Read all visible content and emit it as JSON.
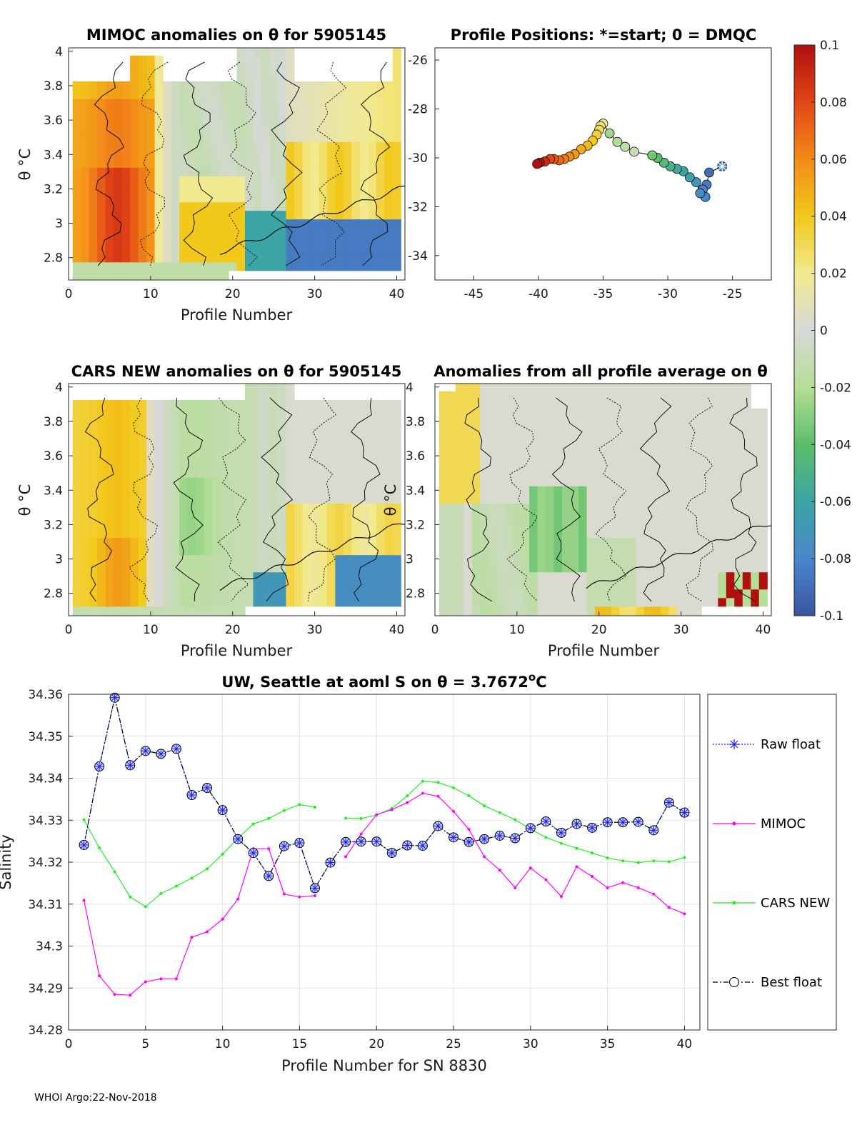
{
  "footer": "WHOI Argo:22-Nov-2018",
  "colorbar": {
    "min": -0.1,
    "max": 0.1,
    "tick_values": [
      0.1,
      0.08,
      0.06,
      0.04,
      0.02,
      0,
      -0.02,
      -0.04,
      -0.06,
      -0.08,
      -0.1
    ],
    "tick_labels": [
      "0.1",
      "0.08",
      "0.06",
      "0.04",
      "0.02",
      "0",
      "-0.02",
      "-0.04",
      "-0.06",
      "-0.08",
      "-0.1"
    ],
    "colors": [
      "#3a55a0",
      "#4a86cc",
      "#3aa5a4",
      "#5cbe6a",
      "#b5de96",
      "#d8d8d8",
      "#f2ea90",
      "#f2c81a",
      "#f38a18",
      "#e24516",
      "#b01010"
    ]
  },
  "chart_data": [
    {
      "id": "mimoc-anomalies",
      "type": "heatmap",
      "title": "MIMOC anomalies on θ  for 5905145",
      "xlabel": "Profile Number",
      "ylabel": "θ °C",
      "xlim": [
        0,
        41
      ],
      "ylim": [
        2.67,
        4.02
      ],
      "x_ticks": [
        0,
        10,
        20,
        30,
        40
      ],
      "y_ticks": [
        2.8,
        3,
        3.2,
        3.4,
        3.6,
        3.8,
        4
      ],
      "y_tick_labels": [
        "2.8",
        "3",
        "3.2",
        "3.4",
        "3.6",
        "3.8",
        "4"
      ]
    },
    {
      "id": "profile-positions",
      "type": "scatter",
      "title": "Profile Positions: *=start; 0 = DMQC",
      "xlim": [
        -48,
        -22
      ],
      "ylim": [
        -35,
        -25.5
      ],
      "x_ticks": [
        -45,
        -40,
        -35,
        -30,
        -25
      ],
      "y_ticks": [
        -26,
        -28,
        -30,
        -32,
        -34
      ],
      "points": [
        {
          "lon": -25.8,
          "lat": -30.35,
          "v": -0.08,
          "start": true
        },
        {
          "lon": -26.8,
          "lat": -30.6,
          "v": -0.09
        },
        {
          "lon": -27.0,
          "lat": -31.1,
          "v": -0.085
        },
        {
          "lon": -27.3,
          "lat": -31.3,
          "v": -0.08
        },
        {
          "lon": -27.1,
          "lat": -31.6,
          "v": -0.08
        },
        {
          "lon": -27.5,
          "lat": -31.45,
          "v": -0.075
        },
        {
          "lon": -27.8,
          "lat": -31.0,
          "v": -0.07
        },
        {
          "lon": -28.3,
          "lat": -30.8,
          "v": -0.065
        },
        {
          "lon": -28.8,
          "lat": -30.55,
          "v": -0.06
        },
        {
          "lon": -29.3,
          "lat": -30.45,
          "v": -0.055
        },
        {
          "lon": -29.8,
          "lat": -30.35,
          "v": -0.05
        },
        {
          "lon": -30.3,
          "lat": -30.2,
          "v": -0.045
        },
        {
          "lon": -30.8,
          "lat": -30.0,
          "v": -0.04
        },
        {
          "lon": -31.2,
          "lat": -29.9,
          "v": -0.035
        },
        {
          "lon": -32.6,
          "lat": -29.75,
          "v": -0.01
        },
        {
          "lon": -33.3,
          "lat": -29.55,
          "v": -0.015
        },
        {
          "lon": -33.9,
          "lat": -29.35,
          "v": -0.02
        },
        {
          "lon": -34.5,
          "lat": -29.0,
          "v": -0.025
        },
        {
          "lon": -35.0,
          "lat": -28.6,
          "v": 0.02
        },
        {
          "lon": -35.2,
          "lat": -28.7,
          "v": 0.025
        },
        {
          "lon": -35.3,
          "lat": -28.85,
          "v": 0.03
        },
        {
          "lon": -35.5,
          "lat": -29.05,
          "v": 0.035
        },
        {
          "lon": -35.8,
          "lat": -29.3,
          "v": 0.04
        },
        {
          "lon": -36.2,
          "lat": -29.5,
          "v": 0.045
        },
        {
          "lon": -36.7,
          "lat": -29.65,
          "v": 0.05
        },
        {
          "lon": -37.2,
          "lat": -29.85,
          "v": 0.055
        },
        {
          "lon": -37.6,
          "lat": -29.95,
          "v": 0.06
        },
        {
          "lon": -38.0,
          "lat": -30.05,
          "v": 0.065
        },
        {
          "lon": -38.4,
          "lat": -30.1,
          "v": 0.07
        },
        {
          "lon": -38.8,
          "lat": -30.05,
          "v": 0.075
        },
        {
          "lon": -39.1,
          "lat": -30.05,
          "v": 0.08
        },
        {
          "lon": -39.5,
          "lat": -30.15,
          "v": 0.09
        },
        {
          "lon": -39.9,
          "lat": -30.2,
          "v": 0.1
        },
        {
          "lon": -40.1,
          "lat": -30.25,
          "v": 0.1
        }
      ]
    },
    {
      "id": "cars-anomalies",
      "type": "heatmap",
      "title": "CARS NEW anomalies on θ for 5905145",
      "xlabel": "Profile Number",
      "ylabel": "θ °C",
      "xlim": [
        0,
        41
      ],
      "ylim": [
        2.67,
        4.02
      ],
      "x_ticks": [
        0,
        10,
        20,
        30,
        40
      ],
      "y_ticks": [
        2.8,
        3,
        3.2,
        3.4,
        3.6,
        3.8,
        4
      ],
      "y_tick_labels": [
        "2.8",
        "3",
        "3.2",
        "3.4",
        "3.6",
        "3.8",
        "4"
      ]
    },
    {
      "id": "profile-average-anomalies",
      "type": "heatmap",
      "title": "Anomalies from all profile average on θ",
      "xlabel": "Profile Number",
      "ylabel": "θ °C",
      "xlim": [
        0,
        41
      ],
      "ylim": [
        2.67,
        4.02
      ],
      "x_ticks": [
        0,
        10,
        20,
        30,
        40
      ],
      "y_ticks": [
        2.8,
        3,
        3.2,
        3.4,
        3.6,
        3.8,
        4
      ],
      "y_tick_labels": [
        "2.8",
        "3",
        "3.2",
        "3.4",
        "3.6",
        "3.8",
        "4"
      ]
    },
    {
      "id": "salinity-series",
      "type": "line",
      "title": "UW, Seattle at aoml S on θ = 3.7672°C",
      "title_parts": {
        "prefix": "UW, Seattle at aoml S on θ = 3.7672",
        "degree": "o",
        "unit": "C"
      },
      "xlabel": "Profile Number for SN 8830",
      "ylabel": "Salinity",
      "xlim": [
        0,
        41
      ],
      "ylim": [
        34.28,
        34.36
      ],
      "x_ticks": [
        0,
        5,
        10,
        15,
        20,
        25,
        30,
        35,
        40
      ],
      "y_ticks": [
        34.28,
        34.29,
        34.3,
        34.31,
        34.32,
        34.33,
        34.34,
        34.35,
        34.36
      ],
      "y_tick_labels": [
        "34.28",
        "34.29",
        "34.3",
        "34.31",
        "34.32",
        "34.33",
        "34.34",
        "34.35",
        "34.36"
      ],
      "x": [
        1,
        2,
        3,
        4,
        5,
        6,
        7,
        8,
        9,
        10,
        11,
        12,
        13,
        14,
        15,
        16,
        17,
        18,
        19,
        20,
        21,
        22,
        23,
        24,
        25,
        26,
        27,
        28,
        29,
        30,
        31,
        32,
        33,
        34,
        35,
        36,
        37,
        38,
        39,
        40
      ],
      "series": [
        {
          "name": "Raw float",
          "color": "#1a1aff",
          "values": [
            34.3241,
            34.3428,
            34.3592,
            34.3431,
            34.3465,
            34.3458,
            34.347,
            34.336,
            34.3377,
            34.3324,
            34.3255,
            34.3222,
            34.3167,
            34.3238,
            34.3246,
            34.3138,
            34.3199,
            34.3248,
            34.3249,
            34.3249,
            34.3222,
            34.324,
            34.3239,
            34.3286,
            34.3259,
            34.3248,
            34.3255,
            34.3263,
            34.3257,
            34.3281,
            34.3297,
            34.327,
            34.3291,
            34.3282,
            34.3295,
            34.3295,
            34.3296,
            34.3276,
            34.3342,
            34.3318
          ]
        },
        {
          "name": "MIMOC",
          "color": "#ff00ff",
          "values": [
            34.3109,
            34.2929,
            34.2885,
            34.2883,
            34.2915,
            34.2922,
            34.2922,
            34.3021,
            34.3034,
            34.3064,
            34.3112,
            34.3232,
            34.3232,
            34.3124,
            34.3117,
            34.312,
            null,
            34.3213,
            34.3267,
            34.3313,
            34.3325,
            34.3342,
            34.3364,
            34.3357,
            34.3321,
            34.3278,
            34.3213,
            34.3181,
            34.3139,
            34.3186,
            34.3158,
            34.3118,
            34.3189,
            34.3166,
            34.3139,
            34.3151,
            34.3139,
            34.3124,
            34.3092,
            34.3077
          ]
        },
        {
          "name": "CARS NEW",
          "color": "#22ee22",
          "values": [
            34.3301,
            34.3234,
            34.3177,
            34.3117,
            34.3094,
            34.3125,
            34.3143,
            34.3162,
            34.3184,
            34.3219,
            34.3257,
            34.3291,
            34.3304,
            34.3323,
            34.3337,
            34.3331,
            null,
            34.3305,
            34.3304,
            34.3312,
            34.3328,
            34.3358,
            34.3393,
            34.339,
            34.3377,
            34.3358,
            34.3334,
            34.3318,
            34.3301,
            34.3279,
            34.3259,
            34.3245,
            34.3233,
            34.3222,
            34.321,
            34.3203,
            34.3199,
            34.3203,
            34.3201,
            34.3211
          ]
        },
        {
          "name": "Best float",
          "color": "#000000",
          "values": [
            34.3241,
            34.3428,
            34.3592,
            34.3431,
            34.3465,
            34.3458,
            34.347,
            34.336,
            34.3377,
            34.3324,
            34.3255,
            34.3222,
            34.3167,
            34.3238,
            34.3246,
            34.3138,
            34.3199,
            34.3248,
            34.3249,
            34.3249,
            34.3222,
            34.324,
            34.3239,
            34.3286,
            34.3259,
            34.3248,
            34.3255,
            34.3263,
            34.3257,
            34.3281,
            34.3297,
            34.327,
            34.3291,
            34.3282,
            34.3295,
            34.3295,
            34.3296,
            34.3276,
            34.3342,
            34.3318
          ]
        }
      ],
      "legend": {
        "position": "right",
        "entries": [
          "Raw float",
          "MIMOC",
          "CARS NEW",
          "Best float"
        ]
      }
    }
  ]
}
